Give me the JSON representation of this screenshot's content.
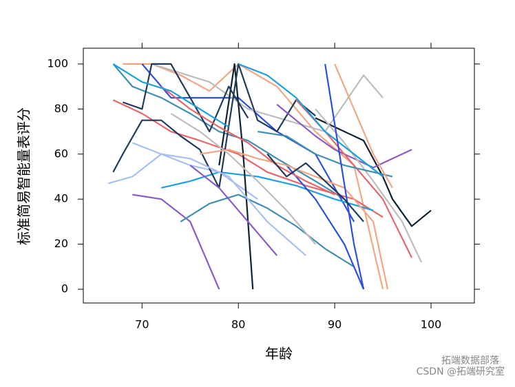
{
  "chart_data": {
    "type": "line",
    "x_label": "年龄",
    "y_label": "标准简易智能量表评分",
    "xlim": [
      63.9,
      104.5
    ],
    "ylim": [
      -6.1,
      107
    ],
    "xticks": [
      70,
      80,
      90,
      100
    ],
    "yticks": [
      0,
      20,
      40,
      60,
      80,
      100
    ],
    "series": [
      {
        "color": "#3e8fb0",
        "x": [
          67,
          69,
          72,
          75,
          78,
          81,
          84,
          88,
          91
        ],
        "values": [
          100,
          90,
          85,
          78,
          70,
          66,
          58,
          48,
          40
        ]
      },
      {
        "color": "#f4a582",
        "x": [
          68,
          71,
          74,
          77,
          80,
          84,
          88,
          92,
          95
        ],
        "values": [
          100,
          100,
          95,
          88,
          100,
          90,
          70,
          55,
          0
        ]
      },
      {
        "color": "#e7656b",
        "x": [
          67,
          70,
          73,
          76,
          80,
          83,
          87,
          92,
          95
        ],
        "values": [
          84,
          78,
          70,
          66,
          60,
          52,
          46,
          40,
          32
        ]
      },
      {
        "color": "#8a5bc4",
        "x": [
          69,
          72,
          75,
          78
        ],
        "values": [
          42,
          40,
          30,
          0
        ]
      },
      {
        "color": "#2b4fe0",
        "x": [
          70,
          73,
          76,
          80,
          84,
          88,
          92
        ],
        "values": [
          100,
          85,
          85,
          85,
          70,
          60,
          30
        ]
      },
      {
        "color": "#bdbdbd",
        "x": [
          71,
          74,
          77,
          81,
          85,
          89,
          93,
          95
        ],
        "values": [
          100,
          96,
          92,
          80,
          75,
          70,
          95,
          85
        ]
      },
      {
        "color": "#1aa0e0",
        "x": [
          72,
          75,
          78,
          82,
          86,
          90,
          94
        ],
        "values": [
          45,
          48,
          52,
          50,
          46,
          40,
          35
        ]
      },
      {
        "color": "#a8bff5",
        "x": [
          66.5,
          69,
          72,
          75,
          78,
          82
        ],
        "values": [
          47,
          50,
          60,
          55,
          52,
          40
        ]
      },
      {
        "color": "#0e2233",
        "x": [
          78,
          79.6,
          80.5,
          81.5
        ],
        "values": [
          55,
          100,
          60,
          0
        ]
      },
      {
        "color": "#0e2233",
        "x": [
          88,
          91,
          93,
          95,
          96,
          98,
          100
        ],
        "values": [
          76,
          70,
          66,
          50,
          40,
          28,
          35
        ]
      },
      {
        "color": "#1f3a5a",
        "x": [
          67,
          68,
          70,
          72,
          74,
          76,
          78,
          80,
          82,
          84,
          86,
          88
        ],
        "values": [
          52,
          60,
          75,
          75,
          68,
          62,
          45,
          100,
          75,
          70,
          84,
          77
        ]
      },
      {
        "color": "#1f3a5a",
        "x": [
          68,
          70,
          71,
          73,
          75,
          77,
          79,
          81
        ],
        "values": [
          83,
          80,
          100,
          100,
          85,
          70,
          90,
          76
        ]
      },
      {
        "color": "#8a5bc4",
        "x": [
          84,
          86,
          88,
          90,
          92,
          94,
          96,
          98
        ],
        "values": [
          82,
          75,
          68,
          62,
          58,
          54,
          58,
          62
        ]
      },
      {
        "color": "#e7656b",
        "x": [
          86,
          89,
          92,
          95,
          98
        ],
        "values": [
          84,
          70,
          55,
          40,
          14
        ]
      },
      {
        "color": "#bdbdbd",
        "x": [
          88,
          91,
          94,
          97,
          99
        ],
        "values": [
          80,
          65,
          48,
          30,
          12
        ]
      },
      {
        "color": "#3e8fb0",
        "x": [
          74,
          77,
          80,
          83,
          86,
          89,
          92
        ],
        "values": [
          30,
          38,
          42,
          36,
          28,
          18,
          10
        ]
      },
      {
        "color": "#2b4fe0",
        "x": [
          85,
          88,
          91,
          93
        ],
        "values": [
          55,
          40,
          20,
          0
        ]
      },
      {
        "color": "#f4a582",
        "x": [
          76,
          79,
          82,
          85,
          88,
          91,
          94,
          95.5
        ],
        "values": [
          60,
          62,
          58,
          55,
          50,
          45,
          30,
          0
        ]
      },
      {
        "color": "#1aa0e0",
        "x": [
          80,
          83,
          86,
          89,
          92,
          95
        ],
        "values": [
          100,
          95,
          85,
          70,
          60,
          50
        ]
      },
      {
        "color": "#a8bff5",
        "x": [
          69,
          72,
          75,
          79,
          83,
          87
        ],
        "values": [
          65,
          60,
          58,
          50,
          30,
          15
        ]
      },
      {
        "color": "#8a5bc4",
        "x": [
          75,
          78,
          81,
          84
        ],
        "values": [
          55,
          45,
          30,
          15
        ]
      },
      {
        "color": "#3e8fb0",
        "x": [
          82,
          85,
          88,
          91,
          94,
          96
        ],
        "values": [
          70,
          68,
          60,
          55,
          52,
          50
        ]
      },
      {
        "color": "#e7656b",
        "x": [
          72,
          75,
          78,
          81,
          84,
          87,
          90
        ],
        "values": [
          90,
          80,
          72,
          65,
          55,
          48,
          42
        ]
      },
      {
        "color": "#2b4fe0",
        "x": [
          89,
          90.5,
          92,
          93
        ],
        "values": [
          100,
          60,
          20,
          0
        ]
      },
      {
        "color": "#bdbdbd",
        "x": [
          73,
          76,
          79,
          82,
          85,
          88
        ],
        "values": [
          78,
          70,
          60,
          48,
          35,
          20
        ]
      },
      {
        "color": "#1f3a5a",
        "x": [
          83,
          85,
          87,
          89,
          91,
          93
        ],
        "values": [
          60,
          50,
          56,
          48,
          40,
          30
        ]
      },
      {
        "color": "#1aa0e0",
        "x": [
          67,
          70,
          73,
          76,
          79
        ],
        "values": [
          100,
          92,
          88,
          80,
          72
        ]
      },
      {
        "color": "#f4a582",
        "x": [
          90,
          92,
          94,
          96
        ],
        "values": [
          100,
          80,
          60,
          45
        ]
      }
    ]
  },
  "watermark": {
    "brand": "拓端数据部落",
    "source": "CSDN @拓端研究室"
  }
}
